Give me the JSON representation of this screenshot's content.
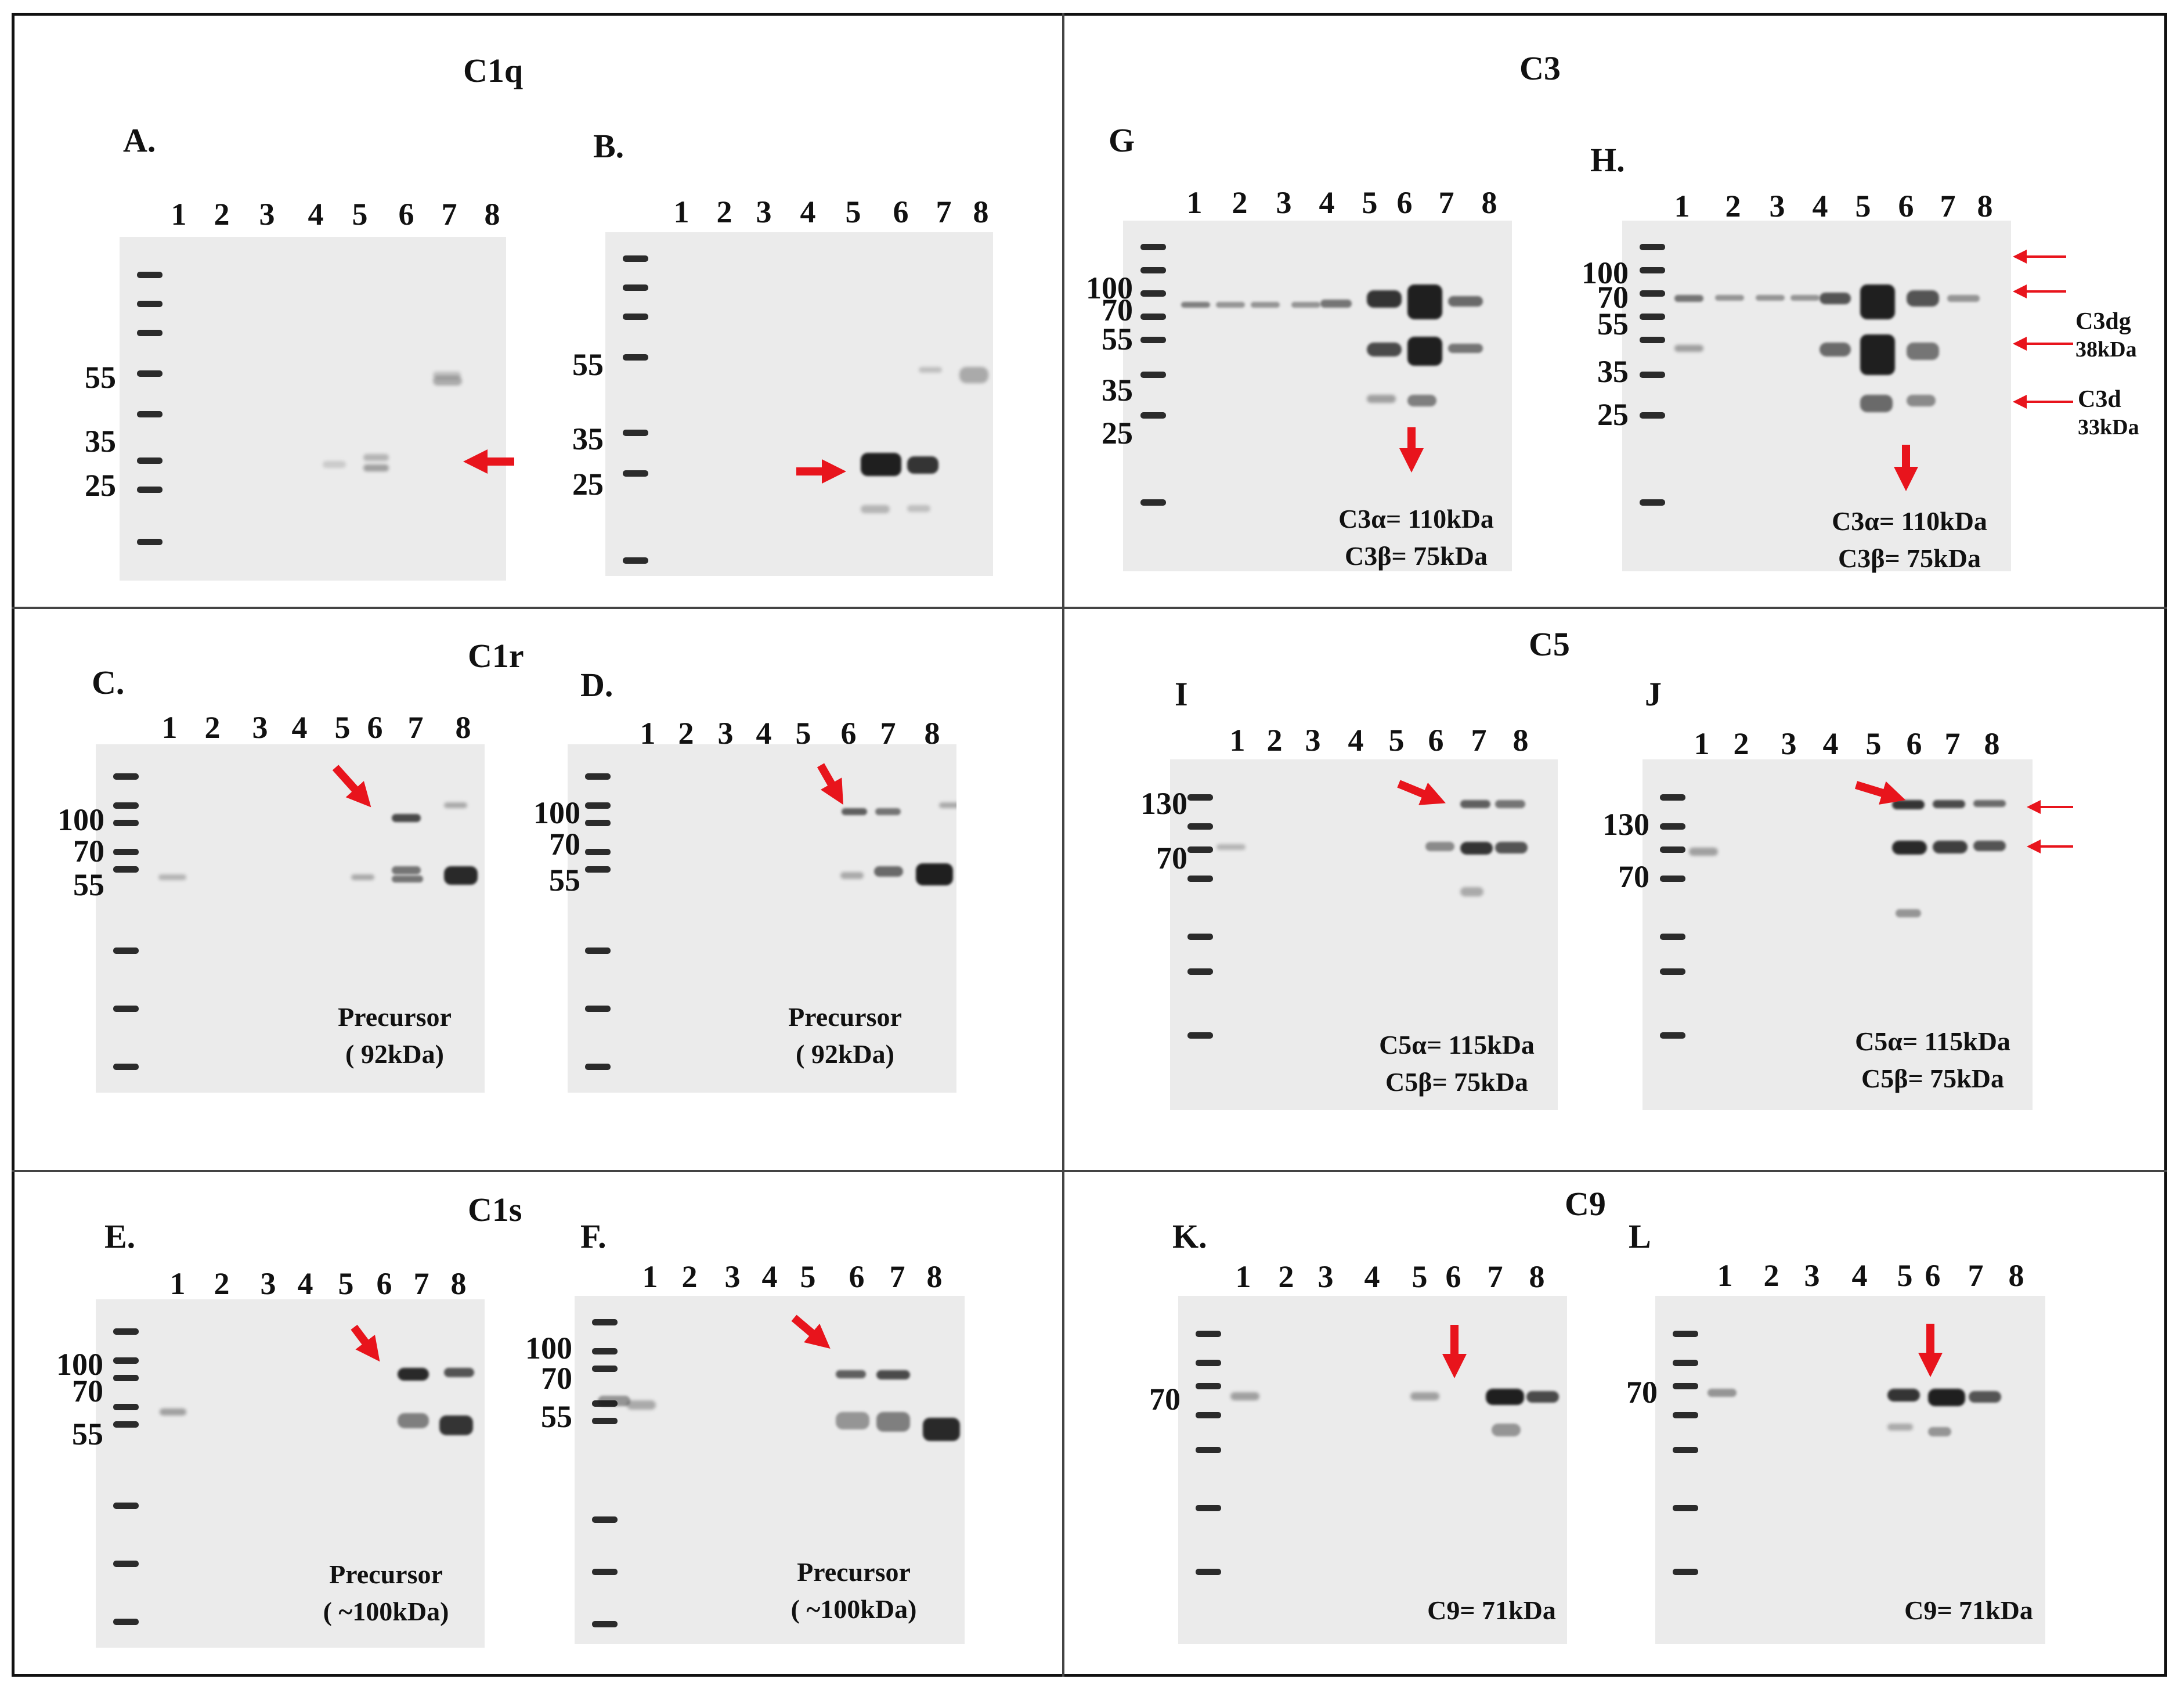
{
  "figure": {
    "sections": {
      "c1q": "C1q",
      "c1r": "C1r",
      "c1s": "C1s",
      "c3": "C3",
      "c5": "C5",
      "c9": "C9"
    },
    "lanes": [
      "1",
      "2",
      "3",
      "4",
      "5",
      "6",
      "7",
      "8"
    ],
    "panels": {
      "A": {
        "label": "A.",
        "markers": [
          "55",
          "35",
          "25"
        ]
      },
      "B": {
        "label": "B.",
        "markers": [
          "55",
          "35",
          "25"
        ]
      },
      "C": {
        "label": "C.",
        "markers": [
          "100",
          "70",
          "55"
        ],
        "note": [
          "Precursor",
          "( 92kDa)"
        ]
      },
      "D": {
        "label": "D.",
        "markers": [
          "100",
          "70",
          "55"
        ],
        "note": [
          "Precursor",
          "( 92kDa)"
        ]
      },
      "E": {
        "label": "E.",
        "markers": [
          "100",
          "70",
          "55"
        ],
        "note": [
          "Precursor",
          "( ~100kDa)"
        ]
      },
      "F": {
        "label": "F.",
        "markers": [
          "100",
          "70",
          "55"
        ],
        "note": [
          "Precursor",
          "( ~100kDa)"
        ]
      },
      "G": {
        "label": "G",
        "markers": [
          "100",
          "70",
          "55",
          "35",
          "25"
        ],
        "note": [
          "C3α= 110kDa",
          "C3β= 75kDa"
        ]
      },
      "H": {
        "label": "H.",
        "markers": [
          "100",
          "70",
          "55",
          "35",
          "25"
        ],
        "note": [
          "C3α= 110kDa",
          "C3β= 75kDa"
        ],
        "annotations": {
          "c3dg": "C3dg",
          "c3dg_mw": "38kDa",
          "c3d": "C3d",
          "c3d_mw": "33kDa"
        }
      },
      "I": {
        "label": "I",
        "markers": [
          "130",
          "70"
        ],
        "note": [
          "C5α= 115kDa",
          "C5β= 75kDa"
        ]
      },
      "J": {
        "label": "J",
        "markers": [
          "130",
          "70"
        ],
        "note": [
          "C5α= 115kDa",
          "C5β= 75kDa"
        ]
      },
      "K": {
        "label": "K.",
        "markers": [
          "70"
        ],
        "note": [
          "C9= 71kDa"
        ]
      },
      "L": {
        "label": "L",
        "markers": [
          "70"
        ],
        "note": [
          "C9= 71kDa"
        ]
      }
    }
  },
  "colors": {
    "arrow": "#e8141c",
    "band": "#161616",
    "blot_bg": "#ebebeb",
    "border": "#111111"
  }
}
